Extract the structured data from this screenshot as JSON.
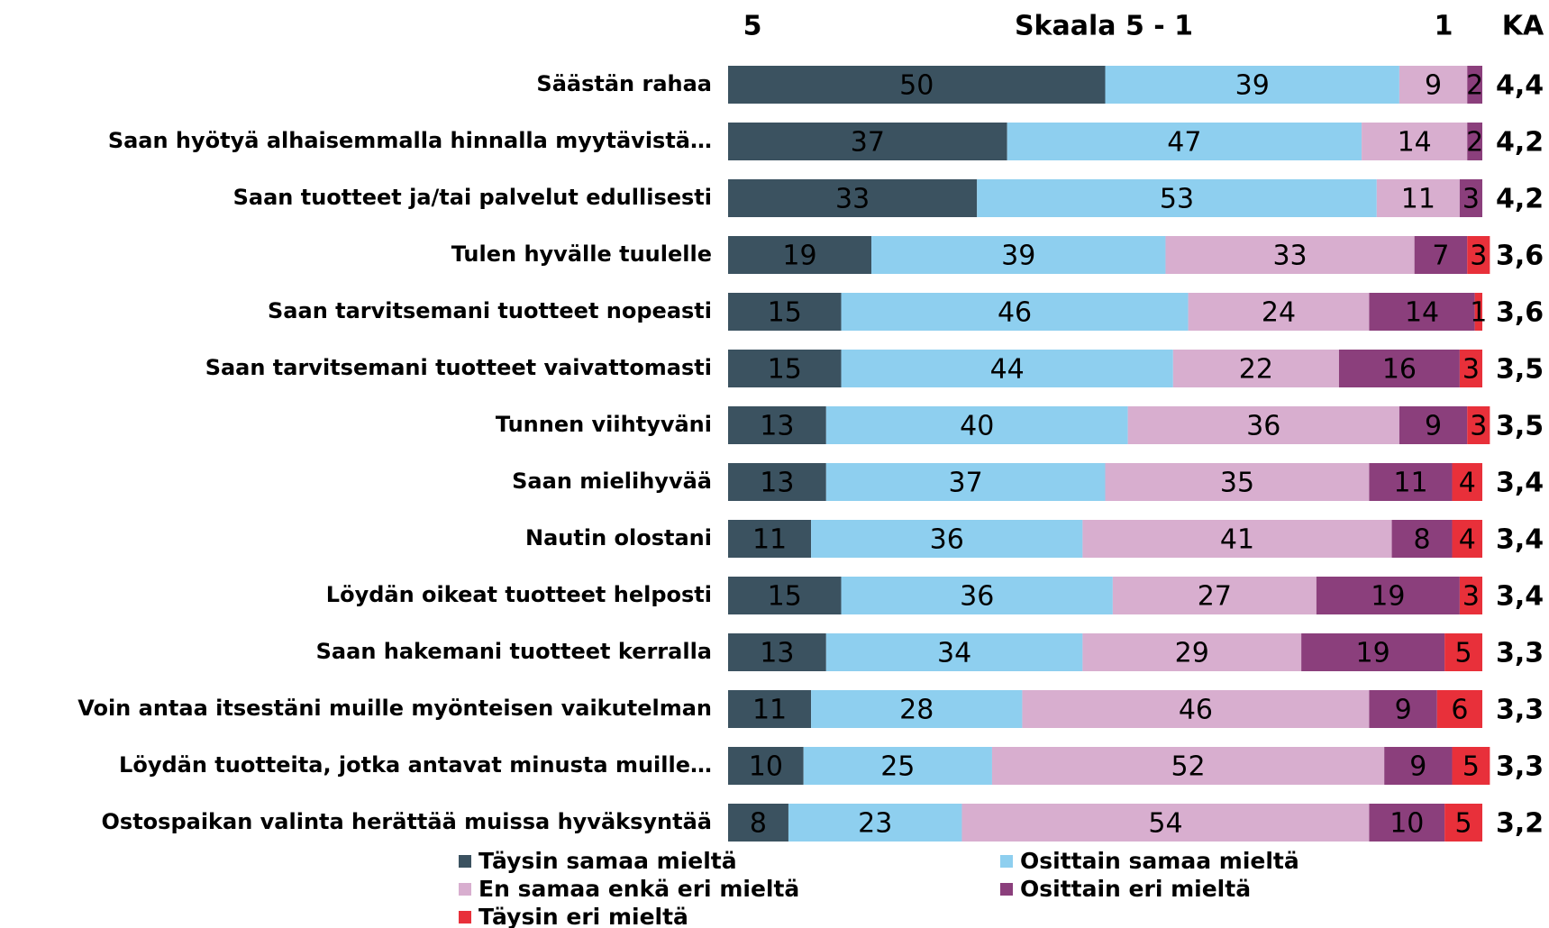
{
  "chart_data": {
    "type": "stacked_bar_horizontal",
    "header_left": "5",
    "header_title": "Skaala 5 - 1",
    "header_right": "1",
    "categories": [
      "Säästän rahaa",
      "Saan hyötyä alhaisemmalla hinnalla myytävistä…",
      "Saan tuotteet ja/tai palvelut edullisesti",
      "Tulen hyvälle tuulelle",
      "Saan tarvitsemani tuotteet nopeasti",
      "Saan tarvitsemani tuotteet vaivattomasti",
      "Tunnen viihtyväni",
      "Saan mielihyvää",
      "Nautin olostani",
      "Löydän oikeat tuotteet helposti",
      "Saan hakemani tuotteet kerralla",
      "Voin antaa itsestäni muille myönteisen vaikutelman",
      "Löydän tuotteita, jotka antavat minusta muille…",
      "Ostospaikan valinta herättää muissa hyväksyntää"
    ],
    "series": [
      {
        "name": "Täysin samaa mieltä",
        "color": "#3b5260",
        "values": [
          50,
          37,
          33,
          19,
          15,
          15,
          13,
          13,
          11,
          15,
          13,
          11,
          10,
          8
        ]
      },
      {
        "name": "Osittain samaa mieltä",
        "color": "#8ecfef",
        "values": [
          39,
          47,
          53,
          39,
          46,
          44,
          40,
          37,
          36,
          36,
          34,
          28,
          25,
          23
        ]
      },
      {
        "name": "En samaa enkä eri mieltä",
        "color": "#d8aecf",
        "values": [
          9,
          14,
          11,
          33,
          24,
          22,
          36,
          35,
          41,
          27,
          29,
          46,
          52,
          54
        ]
      },
      {
        "name": "Osittain eri mieltä",
        "color": "#8b3f7c",
        "values": [
          2,
          2,
          3,
          7,
          14,
          16,
          9,
          11,
          8,
          19,
          19,
          9,
          9,
          10
        ]
      },
      {
        "name": "Täysin eri mieltä",
        "color": "#e8303a",
        "values": [
          null,
          null,
          null,
          3,
          1,
          3,
          3,
          4,
          4,
          3,
          5,
          6,
          5,
          5
        ]
      }
    ],
    "averages": {
      "name": "KA",
      "values": [
        4.4,
        4.2,
        4.2,
        3.6,
        3.6,
        3.5,
        3.5,
        3.4,
        3.4,
        3.4,
        3.3,
        3.3,
        3.3,
        3.2
      ],
      "value_labels": [
        "4,4",
        "4,2",
        "4,2",
        "3,6",
        "3,6",
        "3,5",
        "3,5",
        "3,4",
        "3,4",
        "3,4",
        "3,3",
        "3,3",
        "3,3",
        "3,2"
      ]
    },
    "xlim": [
      0,
      100
    ]
  }
}
